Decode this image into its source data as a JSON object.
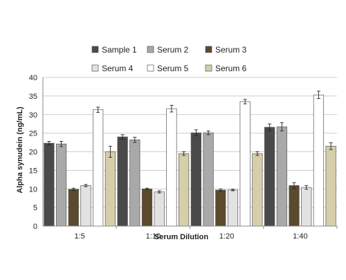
{
  "chart_data": {
    "type": "bar",
    "title": "",
    "xlabel": "Serum Dilution",
    "ylabel": "Alpha synudein (ng/mL)",
    "ylim": [
      0,
      40
    ],
    "yticks": [
      0,
      5,
      10,
      15,
      20,
      25,
      30,
      35,
      40
    ],
    "grid": "horizontal",
    "legend_position": "top",
    "error_bars": true,
    "categories": [
      "1:5",
      "1:10",
      "1:20",
      "1:40"
    ],
    "series": [
      {
        "name": "Sample 1",
        "color": "#4a4a4a",
        "values": [
          22.3,
          24.0,
          25.1,
          26.6
        ],
        "errors": [
          0.5,
          0.6,
          0.8,
          0.9
        ]
      },
      {
        "name": "Serum 2",
        "color": "#a9a9a9",
        "values": [
          22.1,
          23.2,
          25.1,
          26.7
        ],
        "errors": [
          0.7,
          0.7,
          0.5,
          1.1
        ]
      },
      {
        "name": "Serum 3",
        "color": "#5b4a2e",
        "values": [
          9.9,
          10.0,
          9.7,
          10.9
        ],
        "errors": [
          0.3,
          0.2,
          0.3,
          0.8
        ]
      },
      {
        "name": "Serum 4",
        "color": "#e2e2e2",
        "values": [
          10.9,
          9.2,
          9.7,
          10.4
        ],
        "errors": [
          0.3,
          0.3,
          0.2,
          0.5
        ]
      },
      {
        "name": "Serum 5",
        "color": "#ffffff",
        "values": [
          31.3,
          31.6,
          33.5,
          35.3
        ],
        "errors": [
          0.7,
          0.9,
          0.6,
          1.0
        ]
      },
      {
        "name": "Serum 6",
        "color": "#d5ceaa",
        "values": [
          20.0,
          19.5,
          19.5,
          21.5
        ],
        "errors": [
          1.5,
          0.5,
          0.5,
          0.9
        ]
      }
    ]
  }
}
